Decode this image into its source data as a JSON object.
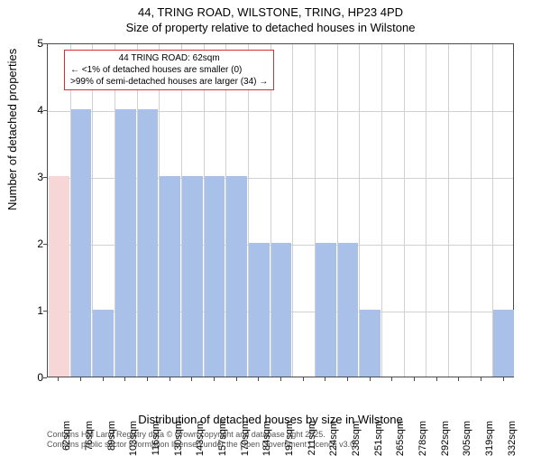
{
  "title1": "44, TRING ROAD, WILSTONE, TRING, HP23 4PD",
  "title2": "Size of property relative to detached houses in Wilstone",
  "y_axis_label": "Number of detached properties",
  "x_axis_label": "Distribution of detached houses by size in Wilstone",
  "chart": {
    "type": "histogram",
    "ylim": [
      0,
      5
    ],
    "ytick_step": 1,
    "bar_color": "#a9c1e8",
    "highlight_color": "#f6d6d6",
    "background": "#ffffff",
    "grid_color": "#d0d0d0",
    "border_color": "#4a4a4a",
    "categories": [
      "62sqm",
      "76sqm",
      "89sqm",
      "103sqm",
      "116sqm",
      "130sqm",
      "143sqm",
      "157sqm",
      "170sqm",
      "184sqm",
      "197sqm",
      "211sqm",
      "224sqm",
      "238sqm",
      "251sqm",
      "265sqm",
      "278sqm",
      "292sqm",
      "305sqm",
      "319sqm",
      "332sqm"
    ],
    "values": [
      3,
      4,
      1,
      4,
      4,
      3,
      3,
      3,
      3,
      2,
      2,
      0,
      2,
      2,
      1,
      0,
      0,
      0,
      0,
      0,
      1
    ],
    "highlight_index": 0,
    "label_rotation": -90,
    "label_fontsize": 11,
    "tick_fontsize": 12
  },
  "annotation": {
    "border_color": "#d62f2f",
    "lines": [
      "44 TRING ROAD: 62sqm",
      "← <1% of detached houses are smaller (0)",
      ">99% of semi-detached houses are larger (34) →"
    ]
  },
  "footnote1": "Contains HM Land Registry data © Crown copyright and database right 2025.",
  "footnote2": "Contains public sector information licensed under the Open Government Licence v3.0."
}
